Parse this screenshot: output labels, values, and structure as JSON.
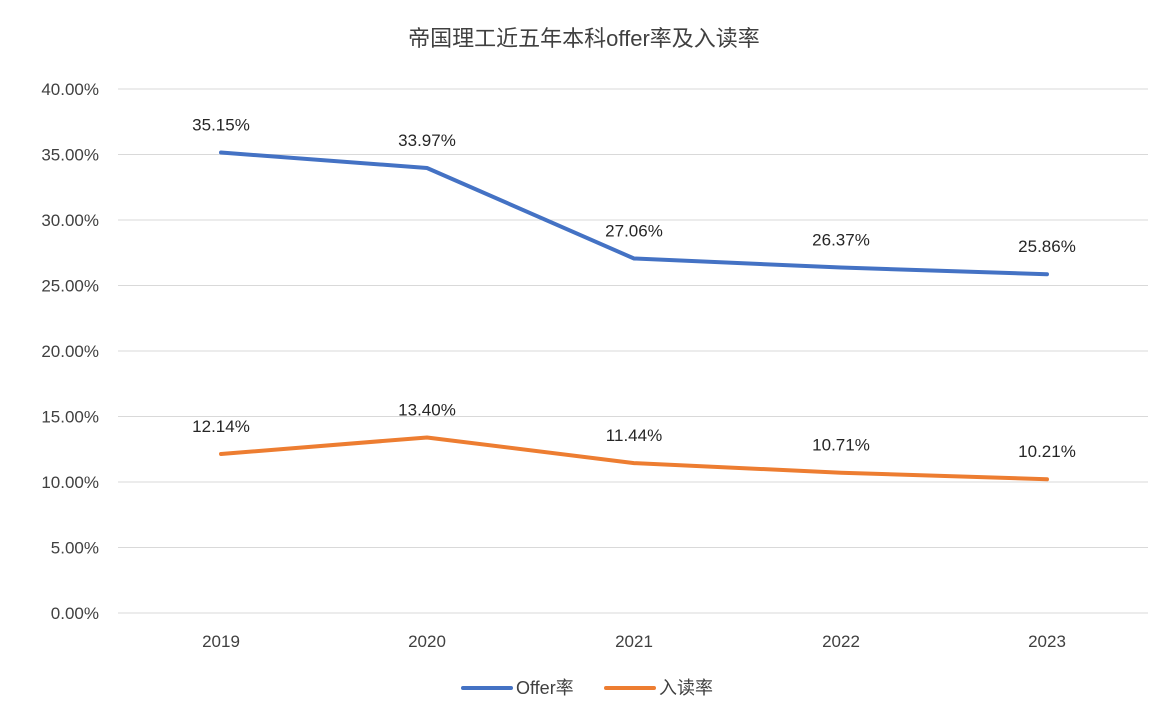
{
  "chart_data": {
    "type": "line",
    "title": "帝国理工近五年本科offer率及入读率",
    "categories": [
      "2019",
      "2020",
      "2021",
      "2022",
      "2023"
    ],
    "ylim": [
      0,
      40
    ],
    "y_ticks": [
      0,
      5,
      10,
      15,
      20,
      25,
      30,
      35,
      40
    ],
    "y_tick_labels": [
      "0.00%",
      "5.00%",
      "10.00%",
      "15.00%",
      "20.00%",
      "25.00%",
      "30.00%",
      "35.00%",
      "40.00%"
    ],
    "grid": true,
    "legend_position": "bottom",
    "series": [
      {
        "name": "Offer率",
        "color": "#4472c4",
        "values": [
          35.15,
          33.97,
          27.06,
          26.37,
          25.86
        ],
        "labels": [
          "35.15%",
          "33.97%",
          "27.06%",
          "26.37%",
          "25.86%"
        ]
      },
      {
        "name": "入读率",
        "color": "#ed7d31",
        "values": [
          12.14,
          13.4,
          11.44,
          10.71,
          10.21
        ],
        "labels": [
          "12.14%",
          "13.40%",
          "11.44%",
          "10.71%",
          "10.21%"
        ]
      }
    ]
  }
}
